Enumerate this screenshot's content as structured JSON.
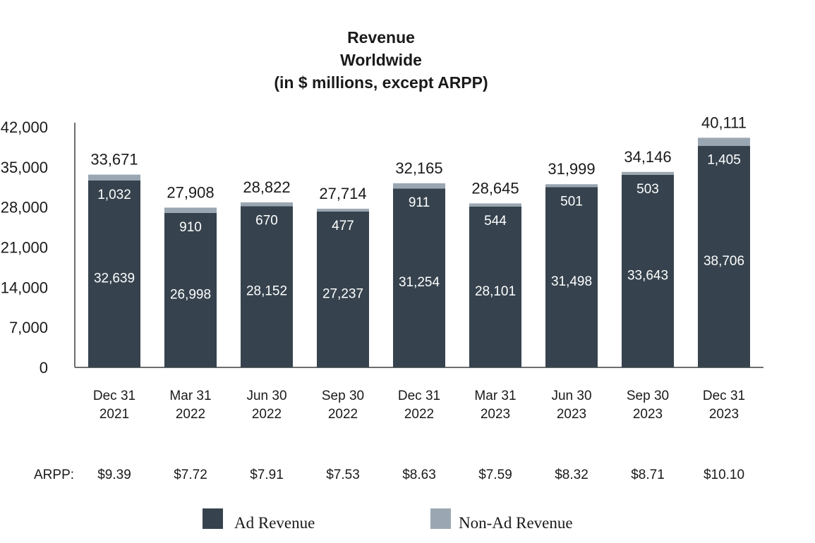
{
  "title_lines": [
    "Revenue",
    "Worldwide",
    "(in $ millions, except ARPP)"
  ],
  "colors": {
    "ad": "#36434e",
    "non_ad": "#9aa7b2",
    "axis": "#6e6e6e",
    "text": "#1a1a1a"
  },
  "arpp_label": "ARPP:",
  "chart_data": {
    "type": "bar",
    "stacked": true,
    "categories": [
      [
        "Dec 31",
        "2021"
      ],
      [
        "Mar 31",
        "2022"
      ],
      [
        "Jun 30",
        "2022"
      ],
      [
        "Sep 30",
        "2022"
      ],
      [
        "Dec 31",
        "2022"
      ],
      [
        "Mar 31",
        "2023"
      ],
      [
        "Jun 30",
        "2023"
      ],
      [
        "Sep 30",
        "2023"
      ],
      [
        "Dec 31",
        "2023"
      ]
    ],
    "series": [
      {
        "name": "Ad Revenue",
        "color": "#36434e",
        "values": [
          32639,
          26998,
          28152,
          27237,
          31254,
          28101,
          31498,
          33643,
          38706
        ],
        "labels": [
          "32,639",
          "26,998",
          "28,152",
          "27,237",
          "31,254",
          "28,101",
          "31,498",
          "33,643",
          "38,706"
        ]
      },
      {
        "name": "Non-Ad Revenue",
        "color": "#9aa7b2",
        "values": [
          1032,
          910,
          670,
          477,
          911,
          544,
          501,
          503,
          1405
        ],
        "labels": [
          "1,032",
          "910",
          "670",
          "477",
          "911",
          "544",
          "501",
          "503",
          "1,405"
        ]
      }
    ],
    "totals": [
      33671,
      27908,
      28822,
      27714,
      32165,
      28645,
      31999,
      34146,
      40111
    ],
    "total_labels": [
      "33,671",
      "27,908",
      "28,822",
      "27,714",
      "32,165",
      "28,645",
      "31,999",
      "34,146",
      "40,111"
    ],
    "arpp": [
      "$9.39",
      "$7.72",
      "$7.91",
      "$7.53",
      "$8.63",
      "$7.59",
      "$8.32",
      "$8.71",
      "$10.10"
    ],
    "yticks": [
      0,
      7000,
      14000,
      21000,
      28000,
      35000,
      42000
    ],
    "ytick_labels": [
      "0",
      "7,000",
      "14,000",
      "21,000",
      "28,000",
      "35,000",
      "42,000"
    ],
    "ylim": [
      0,
      42000
    ],
    "grid": false,
    "legend_position": "bottom"
  }
}
